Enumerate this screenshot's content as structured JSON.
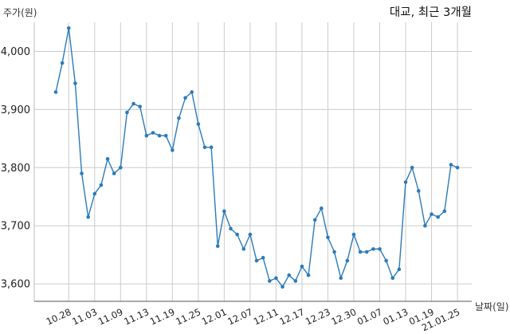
{
  "chart_data": {
    "type": "line",
    "title": "대교, 최근 3개월",
    "ylabel": "주가(원)",
    "xlabel": "날짜(일)",
    "ylim": [
      3570,
      4050
    ],
    "yticks": [
      3600,
      3700,
      3800,
      3900,
      4000
    ],
    "ytick_labels": [
      "3,600",
      "3,700",
      "3,800",
      "3,900",
      "4,000"
    ],
    "xtick_labels": [
      "10.28",
      "11.03",
      "11.09",
      "11.13",
      "11.19",
      "11.25",
      "12.01",
      "12.07",
      "12.11",
      "12.17",
      "12.23",
      "12.30",
      "01.07",
      "01.13",
      "01.19",
      "21.01.25"
    ],
    "xtick_index": [
      2,
      6,
      10,
      14,
      18,
      22,
      26,
      30,
      34,
      38,
      42,
      46,
      50,
      54,
      58,
      62
    ],
    "grid": true,
    "line_color": "#2b7bba",
    "series": [
      {
        "values": [
          3930,
          3980,
          4040,
          3945,
          3790,
          3715,
          3755,
          3770,
          3815,
          3790,
          3800,
          3895,
          3910,
          3905,
          3855,
          3860,
          3855,
          3855,
          3830,
          3885,
          3920,
          3930,
          3875,
          3835,
          3835,
          3665,
          3725,
          3695,
          3685,
          3660,
          3685,
          3640,
          3645,
          3605,
          3610,
          3595,
          3615,
          3605,
          3630,
          3615,
          3710,
          3730,
          3680,
          3655,
          3610,
          3640,
          3685,
          3655,
          3655,
          3660,
          3660,
          3640,
          3610,
          3625,
          3775,
          3800,
          3760,
          3700,
          3720,
          3715,
          3725,
          3805,
          3800
        ]
      }
    ]
  }
}
